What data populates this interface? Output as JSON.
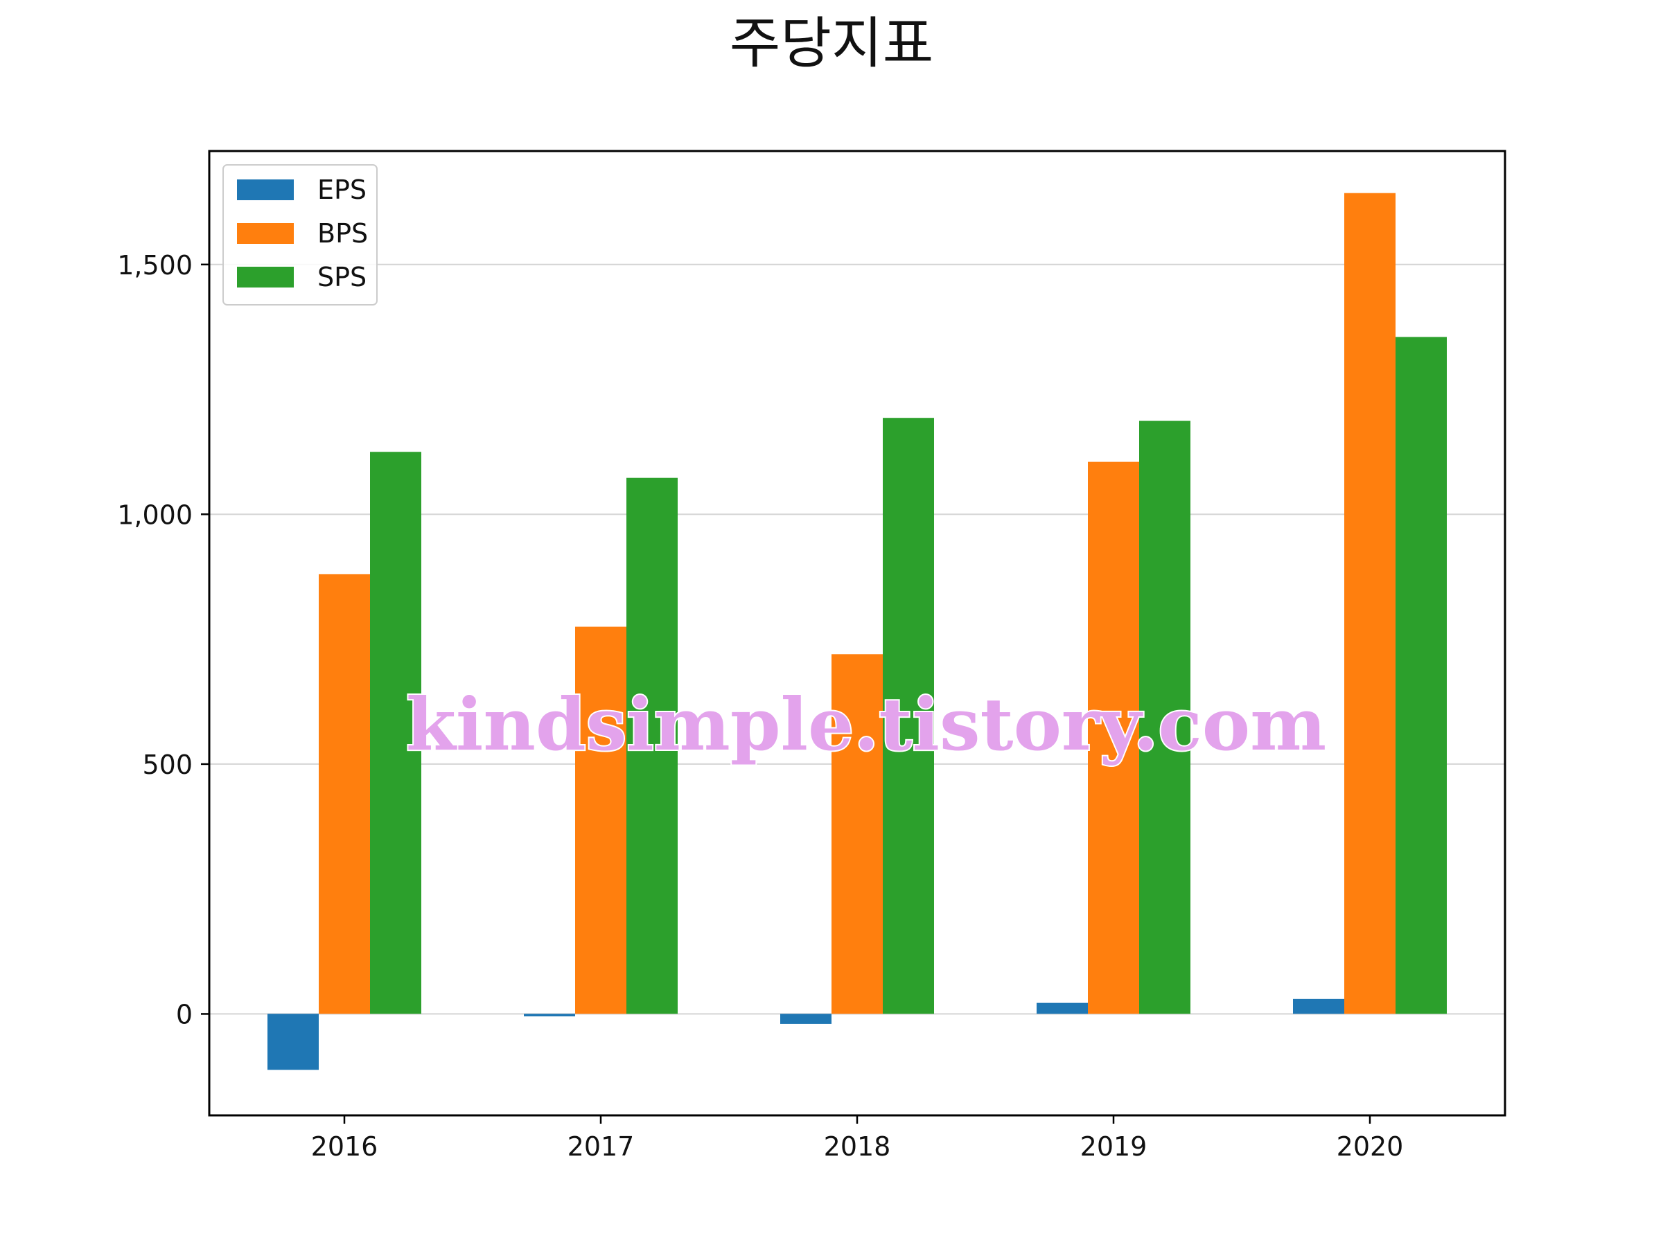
{
  "chart_data": {
    "type": "bar",
    "title": "주당지표",
    "xlabel": "",
    "ylabel": "",
    "categories": [
      "2016",
      "2017",
      "2018",
      "2019",
      "2020"
    ],
    "series": [
      {
        "name": "EPS",
        "values": [
          -112,
          -5,
          -20,
          22,
          30
        ],
        "color": "#1f77b4"
      },
      {
        "name": "BPS",
        "values": [
          880,
          775,
          720,
          1105,
          1643
        ],
        "color": "#ff7f0e"
      },
      {
        "name": "SPS",
        "values": [
          1125,
          1073,
          1193,
          1187,
          1355
        ],
        "color": "#2ca02c"
      }
    ],
    "ylim": [
      -200,
      1730
    ],
    "yticks": [
      0,
      500,
      1000,
      1500
    ],
    "ytick_labels": [
      "0",
      "500",
      "1,000",
      "1,500"
    ],
    "grid": "y",
    "legend_position": "top-left"
  },
  "watermark": "kindsimple.tistory.com"
}
